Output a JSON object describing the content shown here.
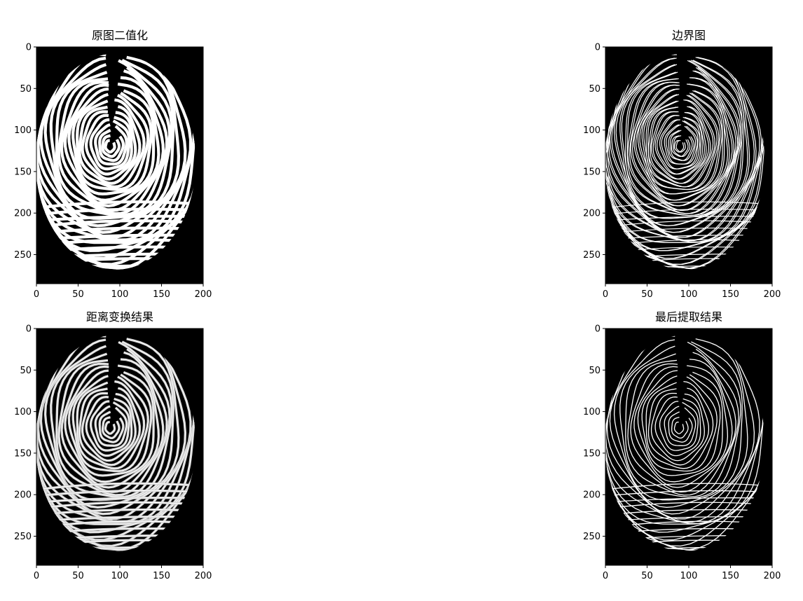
{
  "figure": {
    "panels": [
      {
        "id": "binarized",
        "title": "原图二值化",
        "style": "binary"
      },
      {
        "id": "edges",
        "title": "边界图",
        "style": "edges"
      },
      {
        "id": "distance",
        "title": "距离变换结果",
        "style": "distance"
      },
      {
        "id": "extracted",
        "title": "最后提取结果",
        "style": "thin"
      }
    ]
  },
  "chart_data": [
    {
      "type": "image",
      "title": "原图二值化",
      "xlim": [
        0,
        200
      ],
      "ylim": [
        285,
        0
      ],
      "xticks": [
        "0",
        "50",
        "100",
        "150",
        "200"
      ],
      "yticks": [
        "0",
        "50",
        "100",
        "150",
        "200",
        "250"
      ],
      "colormap": "gray"
    },
    {
      "type": "image",
      "title": "边界图",
      "xlim": [
        0,
        200
      ],
      "ylim": [
        285,
        0
      ],
      "xticks": [
        "0",
        "50",
        "100",
        "150",
        "200"
      ],
      "yticks": [
        "0",
        "50",
        "100",
        "150",
        "200",
        "250"
      ],
      "colormap": "gray"
    },
    {
      "type": "image",
      "title": "距离变换结果",
      "xlim": [
        0,
        200
      ],
      "ylim": [
        285,
        0
      ],
      "xticks": [
        "0",
        "50",
        "100",
        "150",
        "200"
      ],
      "yticks": [
        "0",
        "50",
        "100",
        "150",
        "200",
        "250"
      ],
      "colormap": "gray"
    },
    {
      "type": "image",
      "title": "最后提取结果",
      "xlim": [
        0,
        200
      ],
      "ylim": [
        285,
        0
      ],
      "xticks": [
        "0",
        "50",
        "100",
        "150",
        "200"
      ],
      "yticks": [
        "0",
        "50",
        "100",
        "150",
        "200",
        "250"
      ],
      "colormap": "gray"
    }
  ]
}
